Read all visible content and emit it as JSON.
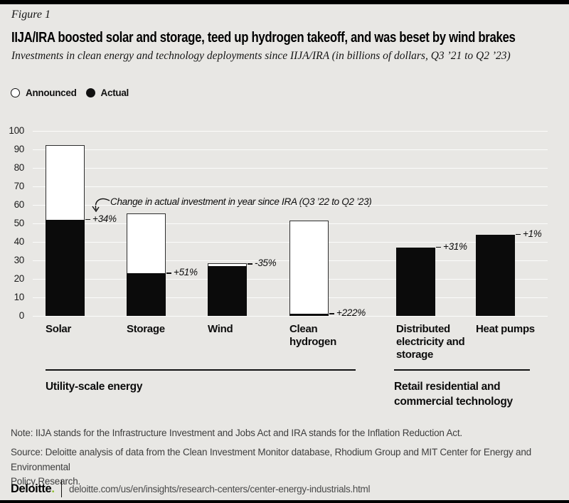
{
  "header": {
    "figure_label": "Figure 1",
    "title": "IIJA/IRA boosted solar and storage, teed up hydrogen takeoff, and was beset by wind brakes",
    "subtitle": "Investments in clean energy and technology deployments since IIJA/IRA (in billions of dollars, Q3 ’21 to Q2 ’23)"
  },
  "legend": {
    "announced": "Announced",
    "actual": "Actual"
  },
  "chart_data": {
    "type": "bar",
    "title": "Investments in clean energy and technology deployments since IIJA/IRA (billions of dollars)",
    "categories": [
      "Solar",
      "Storage",
      "Wind",
      "Clean hydrogen",
      "Distributed electricity and storage",
      "Heat pumps"
    ],
    "category_label_lines": [
      "Solar",
      "Storage",
      "Wind",
      "Clean\nhydrogen",
      "Distributed\nelectricity and\nstorage",
      "Heat pumps"
    ],
    "series": [
      {
        "name": "Announced",
        "values": [
          92,
          55,
          28,
          51,
          null,
          null
        ]
      },
      {
        "name": "Actual",
        "values": [
          52,
          23,
          27,
          1,
          37,
          44
        ]
      }
    ],
    "change_labels": [
      "+34%",
      "+51%",
      "-35%",
      "+222%",
      "+31%",
      "+1%"
    ],
    "change_label_levels": [
      52,
      23,
      28,
      1,
      37,
      44
    ],
    "annotation": "Change in actual investment in year since IRA (Q3 ’22 to Q2 ’23)",
    "ylim": [
      0,
      100
    ],
    "yticks": [
      0,
      10,
      20,
      30,
      40,
      50,
      60,
      70,
      80,
      90,
      100
    ],
    "grid": "horizontal, light lines on gray panel",
    "legend_position": "top-left",
    "groups": [
      {
        "label": "Utility-scale energy",
        "categories": [
          "Solar",
          "Storage",
          "Wind",
          "Clean hydrogen"
        ]
      },
      {
        "label": "Retail residential and\ncommercial technology",
        "categories": [
          "Distributed electricity and storage",
          "Heat pumps"
        ]
      }
    ]
  },
  "notes": {
    "note": "Note: IIJA stands for the Infrastructure Investment and Jobs Act and IRA stands for the Inflation Reduction Act.",
    "source_lines": [
      "Source: Deloitte analysis of data from the Clean Investment Monitor database, Rhodium Group and MIT Center for Energy and Environmental",
      "Policy Research."
    ]
  },
  "footer": {
    "brand": "Deloitte",
    "brand_dot": ".",
    "url": "deloitte.com/us/en/insights/research-centers/center-energy-industrials.html"
  },
  "colors": {
    "background": "#e8e7e4",
    "bar_actual": "#0b0b0b",
    "announced_fill": "#ffffff",
    "announced_border": "#2e2e2e",
    "deloitte_green": "#86bc25"
  }
}
